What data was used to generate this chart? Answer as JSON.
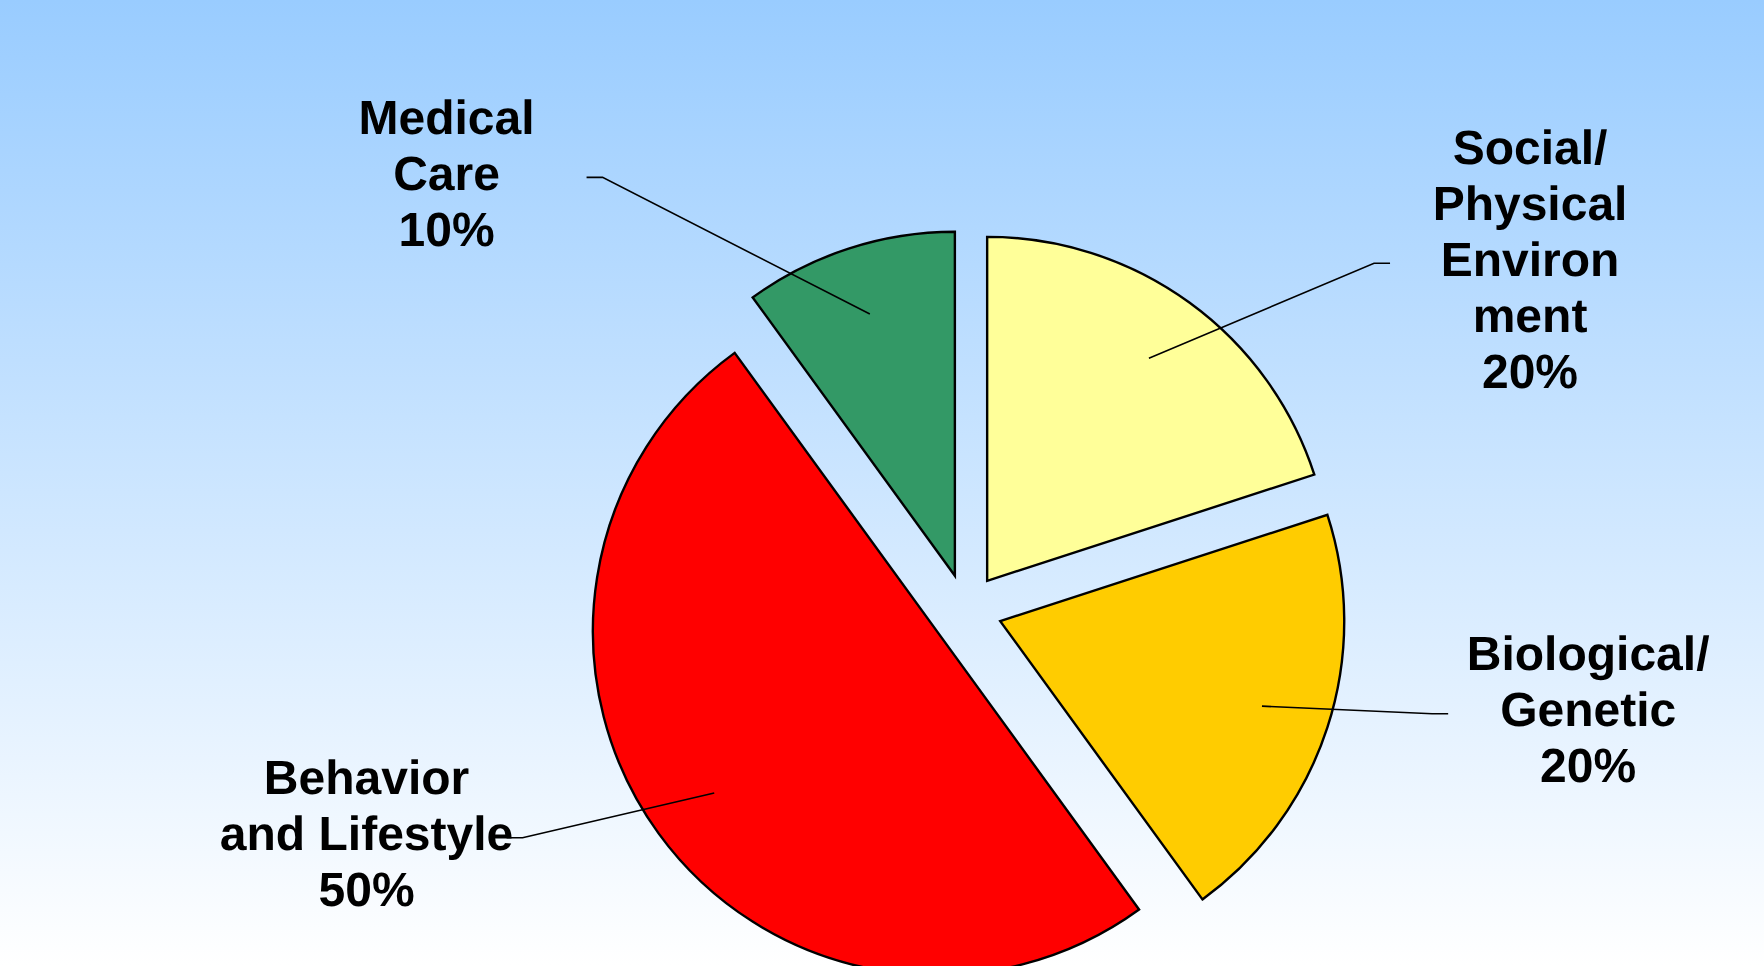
{
  "chart_data": {
    "type": "pie",
    "categories": [
      "Social/\nPhysical\nEnviron\nment",
      "Biological/\nGenetic",
      "Behavior\nand Lifestyle",
      "Medical\nCare"
    ],
    "values": [
      20,
      20,
      50,
      10
    ],
    "colors": [
      "#ffff99",
      "#ffcc00",
      "#ff0000",
      "#339966"
    ],
    "value_labels": [
      "20%",
      "20%",
      "50%",
      "10%"
    ]
  }
}
